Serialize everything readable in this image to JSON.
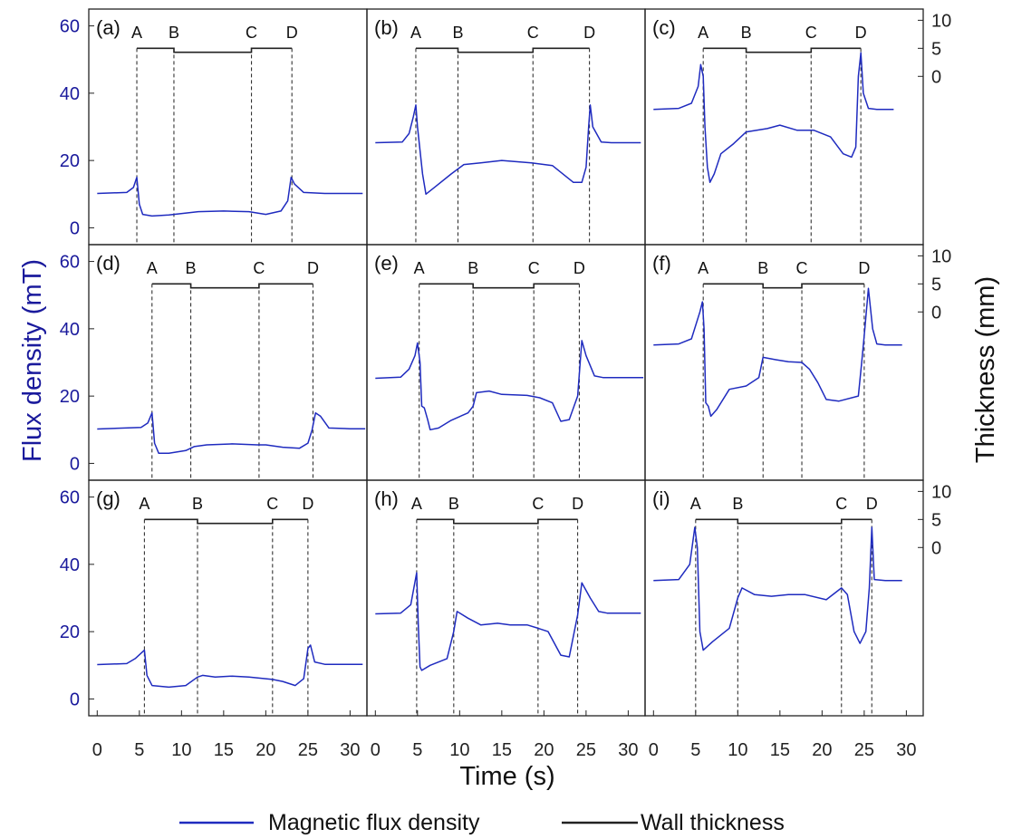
{
  "colors": {
    "flux": "#1f2bbf",
    "wall": "#222222",
    "left_axis_text": "#1a1a9c"
  },
  "axes": {
    "ylabel_left": "Flux density (mT)",
    "ylabel_right": "Thickness (mm)",
    "xlabel": "Time (s)",
    "y_left_ticks": [
      "0",
      "20",
      "40",
      "60"
    ],
    "y_right_ticks": [
      "0",
      "5",
      "10"
    ],
    "x_ticks": [
      "0",
      "5",
      "10",
      "15",
      "20",
      "25",
      "30"
    ]
  },
  "legend": {
    "flux_label": "Magnetic flux density",
    "wall_label": "Wall thickness"
  },
  "chart_data": {
    "type": "line",
    "grid": false,
    "layout": "3x3 panels",
    "xlim": [
      -1,
      32
    ],
    "ylim_left": [
      -5,
      65
    ],
    "ylim_right": [
      -30,
      12
    ],
    "series_names": [
      "Magnetic flux density",
      "Wall thickness"
    ],
    "panels": [
      {
        "label": "(a)",
        "segments": [
          "A",
          "B",
          "C",
          "D"
        ],
        "marks": [
          4.7,
          9.1,
          18.3,
          23.1
        ],
        "wall": [
          5,
          5,
          4.3,
          5
        ],
        "flux": [
          [
            0,
            10.2
          ],
          [
            3.5,
            10.5
          ],
          [
            4.3,
            12
          ],
          [
            4.7,
            15
          ],
          [
            5.0,
            7
          ],
          [
            5.4,
            4
          ],
          [
            6.5,
            3.5
          ],
          [
            8.5,
            3.8
          ],
          [
            12,
            4.8
          ],
          [
            15,
            5
          ],
          [
            18,
            4.8
          ],
          [
            20,
            4
          ],
          [
            21.8,
            5
          ],
          [
            22.6,
            8
          ],
          [
            23.0,
            15
          ],
          [
            23.4,
            13
          ],
          [
            24.5,
            10.5
          ],
          [
            27,
            10.2
          ],
          [
            31.5,
            10.2
          ]
        ]
      },
      {
        "label": "(b)",
        "segments": [
          "A",
          "B",
          "C",
          "D"
        ],
        "marks": [
          4.8,
          9.8,
          18.7,
          25.4
        ],
        "wall": [
          5,
          5,
          4.3,
          5
        ],
        "flux": [
          [
            0,
            25.3
          ],
          [
            3.2,
            25.5
          ],
          [
            4.0,
            28
          ],
          [
            4.5,
            33
          ],
          [
            4.8,
            36.5
          ],
          [
            5.0,
            30
          ],
          [
            5.3,
            23
          ],
          [
            5.6,
            16
          ],
          [
            6.0,
            10
          ],
          [
            7,
            12
          ],
          [
            9,
            16
          ],
          [
            10.5,
            18.8
          ],
          [
            12.5,
            19.3
          ],
          [
            15,
            20
          ],
          [
            18.5,
            19.3
          ],
          [
            21,
            18.5
          ],
          [
            23.5,
            13.5
          ],
          [
            24.5,
            13.5
          ],
          [
            25.0,
            18
          ],
          [
            25.3,
            30
          ],
          [
            25.5,
            36.5
          ],
          [
            25.8,
            30
          ],
          [
            26.8,
            25.5
          ],
          [
            28,
            25.3
          ],
          [
            31.5,
            25.3
          ]
        ]
      },
      {
        "label": "(c)",
        "segments": [
          "A",
          "B",
          "C",
          "D"
        ],
        "marks": [
          5.9,
          11.0,
          18.7,
          24.6
        ],
        "wall": [
          5,
          5,
          4.3,
          5
        ],
        "flux": [
          [
            0,
            35.2
          ],
          [
            3,
            35.5
          ],
          [
            4.5,
            37
          ],
          [
            5.3,
            42
          ],
          [
            5.6,
            48.5
          ],
          [
            5.9,
            45
          ],
          [
            6.1,
            30
          ],
          [
            6.4,
            18
          ],
          [
            6.7,
            13.5
          ],
          [
            7.2,
            16
          ],
          [
            8,
            22
          ],
          [
            9.5,
            25
          ],
          [
            11,
            28.5
          ],
          [
            13.5,
            29.5
          ],
          [
            15,
            30.5
          ],
          [
            17,
            29
          ],
          [
            19,
            29
          ],
          [
            21,
            27
          ],
          [
            22.5,
            22
          ],
          [
            23.5,
            21
          ],
          [
            24.0,
            24
          ],
          [
            24.3,
            45
          ],
          [
            24.6,
            52
          ],
          [
            24.9,
            40
          ],
          [
            25.5,
            35.5
          ],
          [
            26.5,
            35.2
          ],
          [
            28.5,
            35.2
          ]
        ]
      },
      {
        "label": "(d)",
        "segments": [
          "A",
          "B",
          "C",
          "D"
        ],
        "marks": [
          6.5,
          11.1,
          19.2,
          25.6
        ],
        "wall": [
          5,
          5,
          4.3,
          5
        ],
        "flux": [
          [
            0,
            10.2
          ],
          [
            5.2,
            10.7
          ],
          [
            6.0,
            12
          ],
          [
            6.5,
            15
          ],
          [
            6.8,
            6
          ],
          [
            7.3,
            3
          ],
          [
            8.5,
            3
          ],
          [
            10.5,
            3.8
          ],
          [
            11.5,
            5
          ],
          [
            13,
            5.5
          ],
          [
            16,
            5.8
          ],
          [
            19,
            5.5
          ],
          [
            20,
            5.5
          ],
          [
            22,
            4.8
          ],
          [
            24,
            4.5
          ],
          [
            25,
            6
          ],
          [
            25.5,
            10
          ],
          [
            25.9,
            15
          ],
          [
            26.5,
            14
          ],
          [
            27.5,
            10.5
          ],
          [
            30,
            10.3
          ],
          [
            31.8,
            10.3
          ]
        ]
      },
      {
        "label": "(e)",
        "segments": [
          "A",
          "B",
          "C",
          "D"
        ],
        "marks": [
          5.2,
          11.6,
          18.8,
          24.2
        ],
        "wall": [
          5,
          5,
          4.3,
          5
        ],
        "flux": [
          [
            0,
            25.3
          ],
          [
            3,
            25.6
          ],
          [
            4.0,
            28
          ],
          [
            4.7,
            32
          ],
          [
            5.0,
            35.8
          ],
          [
            5.3,
            30
          ],
          [
            5.5,
            17
          ],
          [
            5.8,
            16.5
          ],
          [
            6.2,
            13
          ],
          [
            6.5,
            10
          ],
          [
            7.5,
            10.5
          ],
          [
            9,
            12.8
          ],
          [
            11,
            15
          ],
          [
            11.6,
            17
          ],
          [
            12,
            21
          ],
          [
            13.5,
            21.5
          ],
          [
            15,
            20.5
          ],
          [
            18,
            20.2
          ],
          [
            19.5,
            19.5
          ],
          [
            21,
            18
          ],
          [
            22,
            12.5
          ],
          [
            23,
            13
          ],
          [
            24.0,
            20
          ],
          [
            24.5,
            36.5
          ],
          [
            25,
            32
          ],
          [
            26,
            26
          ],
          [
            27,
            25.5
          ],
          [
            31.8,
            25.5
          ]
        ]
      },
      {
        "label": "(f)",
        "segments": [
          "A",
          "B",
          "C",
          "D"
        ],
        "marks": [
          5.9,
          13.0,
          17.6,
          25.0
        ],
        "wall": [
          5,
          5,
          4.3,
          5
        ],
        "flux": [
          [
            0,
            35.2
          ],
          [
            3,
            35.5
          ],
          [
            4.5,
            37
          ],
          [
            5.5,
            45
          ],
          [
            5.8,
            48
          ],
          [
            6.0,
            40
          ],
          [
            6.2,
            18
          ],
          [
            6.5,
            17
          ],
          [
            6.8,
            14
          ],
          [
            7.5,
            16
          ],
          [
            9,
            22
          ],
          [
            11,
            23
          ],
          [
            12.5,
            25.5
          ],
          [
            13.0,
            31.5
          ],
          [
            14.5,
            30.8
          ],
          [
            16,
            30.2
          ],
          [
            17.6,
            30
          ],
          [
            18.5,
            28
          ],
          [
            19.5,
            24
          ],
          [
            20.5,
            19
          ],
          [
            22,
            18.5
          ],
          [
            24.3,
            20
          ],
          [
            24.7,
            30
          ],
          [
            25.0,
            38
          ],
          [
            25.5,
            52
          ],
          [
            26.0,
            40
          ],
          [
            26.5,
            35.5
          ],
          [
            27.5,
            35.2
          ],
          [
            29.5,
            35.2
          ]
        ]
      },
      {
        "label": "(g)",
        "segments": [
          "A",
          "B",
          "C",
          "D"
        ],
        "marks": [
          5.6,
          11.9,
          20.8,
          25.0
        ],
        "wall": [
          5,
          5,
          4.3,
          5
        ],
        "flux": [
          [
            0,
            10.2
          ],
          [
            3.5,
            10.5
          ],
          [
            4.5,
            12
          ],
          [
            5.6,
            14.5
          ],
          [
            5.9,
            7
          ],
          [
            6.5,
            4
          ],
          [
            8.5,
            3.5
          ],
          [
            10.5,
            4
          ],
          [
            11.9,
            6.5
          ],
          [
            12.5,
            7
          ],
          [
            14,
            6.5
          ],
          [
            16,
            6.8
          ],
          [
            18,
            6.5
          ],
          [
            20.8,
            5.8
          ],
          [
            22,
            5.2
          ],
          [
            23.5,
            4
          ],
          [
            24.5,
            6
          ],
          [
            25.0,
            15
          ],
          [
            25.3,
            16
          ],
          [
            25.8,
            11
          ],
          [
            27,
            10.3
          ],
          [
            31.5,
            10.3
          ]
        ]
      },
      {
        "label": "(h)",
        "segments": [
          "A",
          "B",
          "C",
          "D"
        ],
        "marks": [
          4.9,
          9.3,
          19.3,
          24.0
        ],
        "wall": [
          5,
          5,
          4.3,
          5
        ],
        "flux": [
          [
            0,
            25.3
          ],
          [
            3,
            25.5
          ],
          [
            4.2,
            28
          ],
          [
            4.9,
            37.5
          ],
          [
            5.1,
            22
          ],
          [
            5.3,
            9.5
          ],
          [
            5.5,
            8.5
          ],
          [
            6.5,
            10
          ],
          [
            8.5,
            12
          ],
          [
            9.3,
            20
          ],
          [
            9.7,
            26
          ],
          [
            11,
            24
          ],
          [
            12.5,
            22
          ],
          [
            14.5,
            22.5
          ],
          [
            16,
            22
          ],
          [
            18,
            22
          ],
          [
            19.3,
            21
          ],
          [
            20.5,
            20
          ],
          [
            22,
            13
          ],
          [
            23,
            12.5
          ],
          [
            24.0,
            25
          ],
          [
            24.5,
            34.5
          ],
          [
            25.5,
            30
          ],
          [
            26.5,
            26
          ],
          [
            27.5,
            25.5
          ],
          [
            31.5,
            25.5
          ]
        ]
      },
      {
        "label": "(i)",
        "segments": [
          "A",
          "B",
          "C",
          "D"
        ],
        "marks": [
          5.0,
          10.0,
          22.3,
          25.9
        ],
        "wall": [
          5,
          5,
          4.3,
          5
        ],
        "flux": [
          [
            0,
            35.2
          ],
          [
            3,
            35.5
          ],
          [
            4.3,
            40
          ],
          [
            4.9,
            51
          ],
          [
            5.2,
            45
          ],
          [
            5.5,
            20
          ],
          [
            5.9,
            14.5
          ],
          [
            7,
            17
          ],
          [
            9,
            21
          ],
          [
            10.0,
            30
          ],
          [
            10.5,
            33
          ],
          [
            12,
            31
          ],
          [
            14,
            30.5
          ],
          [
            16,
            31
          ],
          [
            18,
            31
          ],
          [
            20.5,
            29.5
          ],
          [
            22.3,
            33
          ],
          [
            23,
            31
          ],
          [
            23.8,
            20
          ],
          [
            24.5,
            16.5
          ],
          [
            25.2,
            20
          ],
          [
            25.6,
            33
          ],
          [
            25.9,
            51
          ],
          [
            26.2,
            35.5
          ],
          [
            27.5,
            35.2
          ],
          [
            29.5,
            35.2
          ]
        ]
      }
    ]
  }
}
